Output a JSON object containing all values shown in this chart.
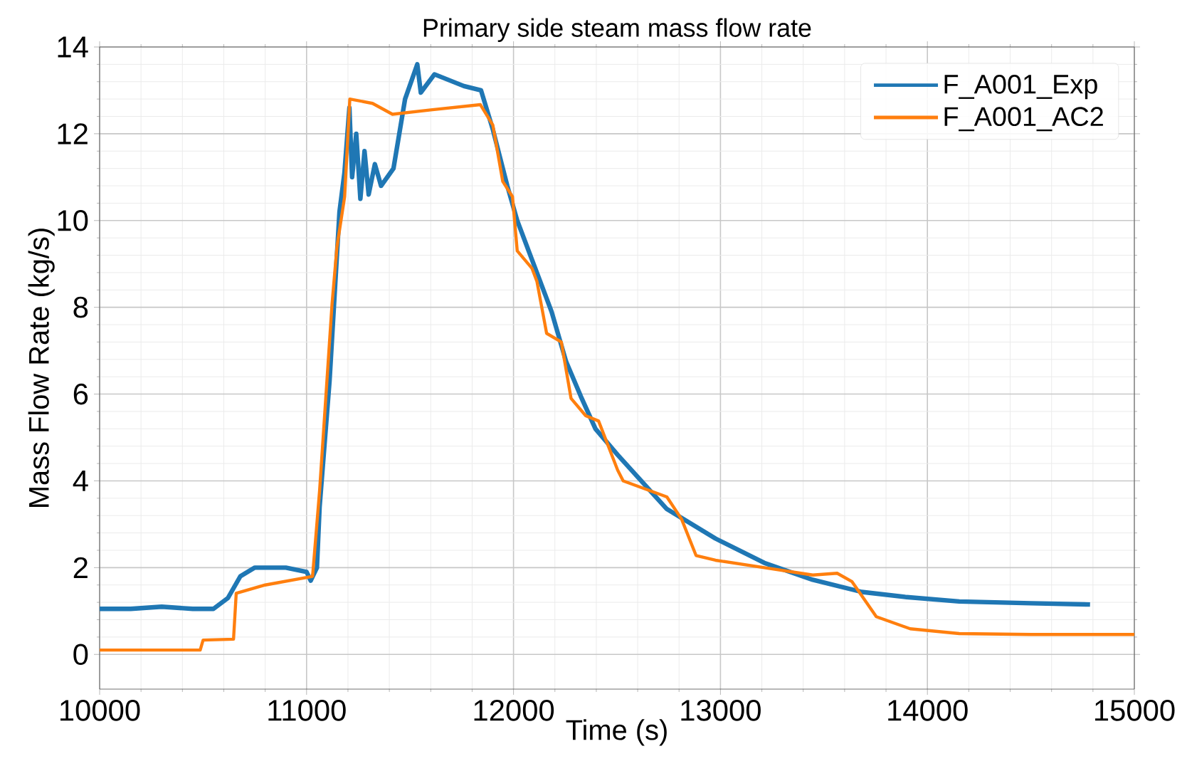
{
  "chart_data": {
    "type": "line",
    "title": "Primary side steam mass flow rate",
    "xlabel": "Time (s)",
    "ylabel": "Mass Flow Rate (kg/s)",
    "xlim": [
      10000,
      15000
    ],
    "ylim": [
      -0.8,
      14
    ],
    "xticks": [
      10000,
      11000,
      12000,
      13000,
      14000,
      15000
    ],
    "yticks": [
      0,
      2,
      4,
      6,
      8,
      10,
      12,
      14
    ],
    "grid": true,
    "legend": "top right",
    "line_style": "solid",
    "marker": "none",
    "series": [
      {
        "name": "F_A001_Exp",
        "color": "#1f77b4",
        "x": [
          10000,
          10150,
          10300,
          10450,
          10550,
          10620,
          10680,
          10750,
          10900,
          11000,
          11020,
          11050,
          11063,
          11111,
          11159,
          11183,
          11207,
          11220,
          11240,
          11260,
          11280,
          11300,
          11330,
          11360,
          11390,
          11420,
          11476,
          11535,
          11552,
          11618,
          11760,
          11843,
          11900,
          11970,
          12018,
          12089,
          12184,
          12254,
          12325,
          12396,
          12503,
          12741,
          12976,
          13212,
          13446,
          13683,
          13900,
          14154,
          14500,
          14786
        ],
        "values": [
          1.05,
          1.05,
          1.1,
          1.05,
          1.05,
          1.3,
          1.8,
          2.0,
          2.0,
          1.9,
          1.7,
          2.0,
          3.4,
          6.3,
          10.2,
          11.1,
          12.6,
          11.0,
          12.0,
          10.5,
          11.6,
          10.6,
          11.3,
          10.8,
          11.0,
          11.2,
          12.8,
          13.6,
          12.95,
          13.37,
          13.1,
          13.0,
          12.1,
          10.8,
          10.0,
          9.1,
          7.9,
          6.75,
          5.95,
          5.2,
          4.6,
          3.35,
          2.67,
          2.11,
          1.72,
          1.44,
          1.32,
          1.22,
          1.18,
          1.15
        ]
      },
      {
        "name": "F_A001_AC2",
        "color": "#ff7f0e",
        "x": [
          10000,
          10486,
          10500,
          10647,
          10660,
          10800,
          11029,
          11063,
          11123,
          11147,
          11184,
          11209,
          11319,
          11415,
          11600,
          11840,
          11900,
          11948,
          11995,
          12018,
          12089,
          12113,
          12160,
          12231,
          12278,
          12349,
          12411,
          12503,
          12530,
          12741,
          12812,
          12882,
          12976,
          13212,
          13446,
          13564,
          13635,
          13753,
          13917,
          14154,
          14500,
          15000
        ],
        "values": [
          0.1,
          0.1,
          0.33,
          0.35,
          1.41,
          1.6,
          1.8,
          3.78,
          8.07,
          9.4,
          10.55,
          12.8,
          12.7,
          12.45,
          12.55,
          12.67,
          12.2,
          10.9,
          10.55,
          9.3,
          8.9,
          8.6,
          7.4,
          7.2,
          5.9,
          5.5,
          5.38,
          4.25,
          4.0,
          3.63,
          3.12,
          2.28,
          2.17,
          2.0,
          1.83,
          1.87,
          1.68,
          0.87,
          0.59,
          0.48,
          0.46,
          0.46
        ]
      }
    ]
  }
}
